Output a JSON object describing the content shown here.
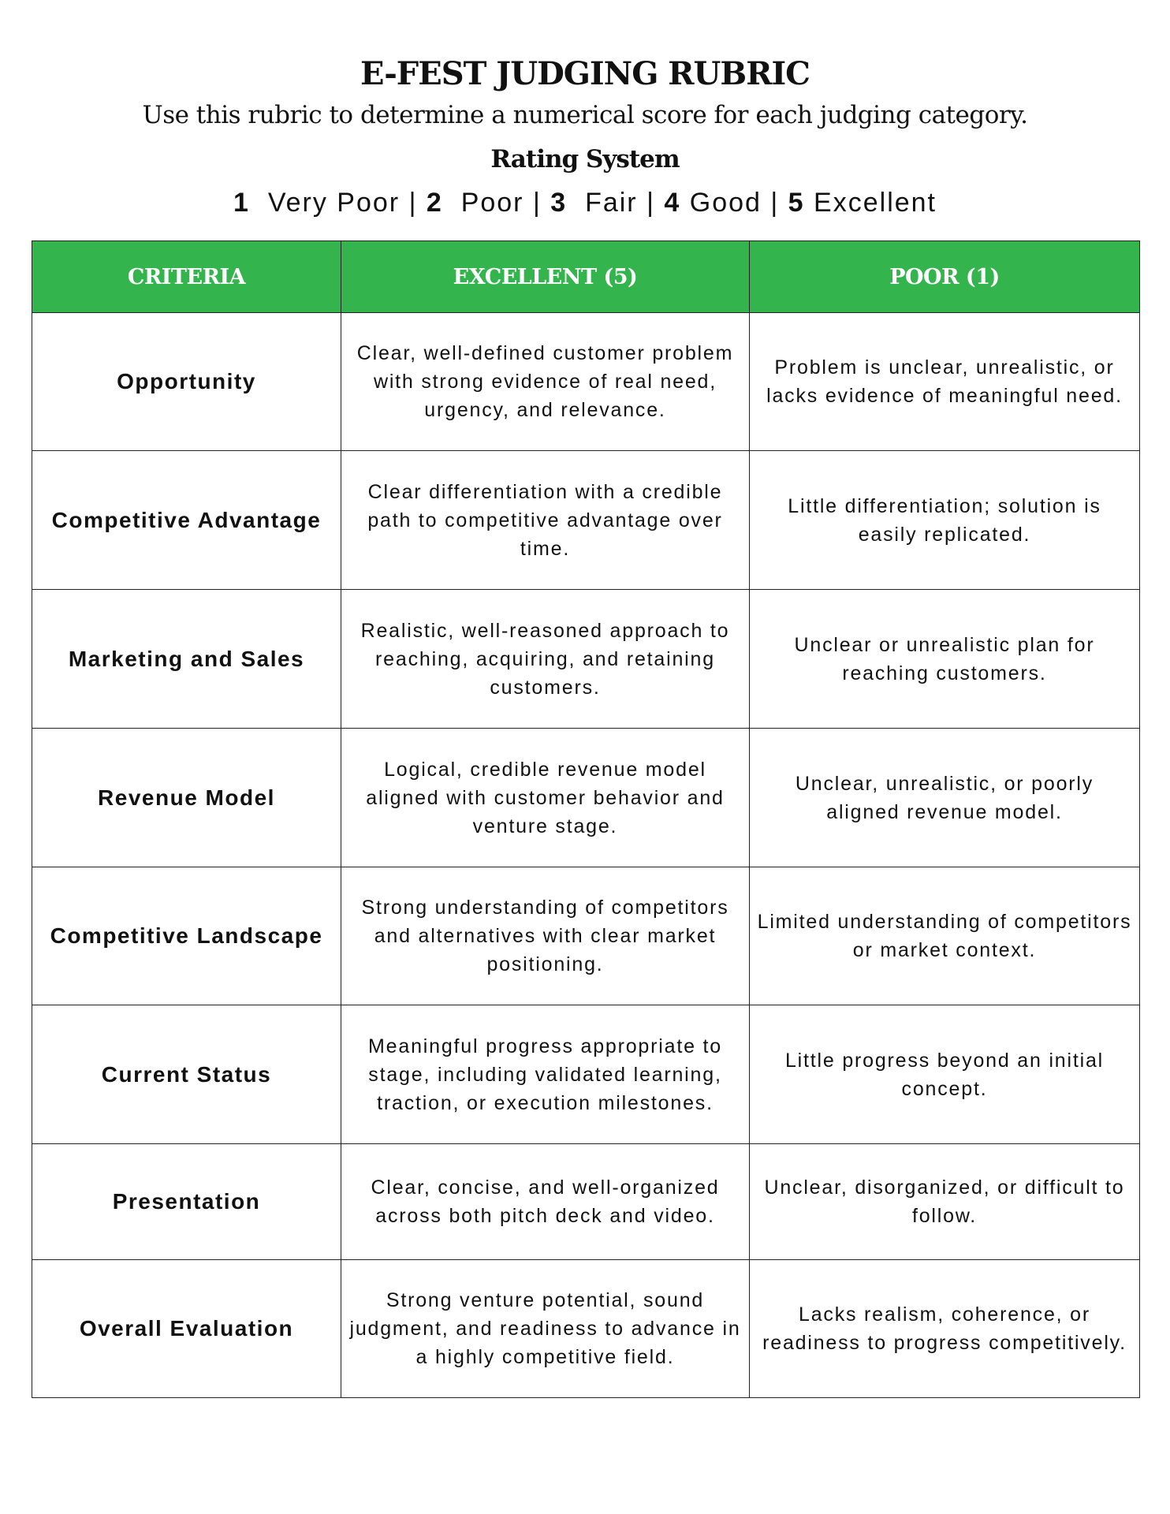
{
  "title": "E-FEST JUDGING RUBRIC",
  "subtitle": "Use this rubric to determine a numerical score for each judging category.",
  "rating_heading": "Rating System",
  "scale": [
    {
      "num": "1",
      "label": "Very Poor"
    },
    {
      "num": "2",
      "label": "Poor"
    },
    {
      "num": "3",
      "label": "Fair"
    },
    {
      "num": "4",
      "label": "Good"
    },
    {
      "num": "5",
      "label": "Excellent"
    }
  ],
  "colors": {
    "header_bg": "#33b44d",
    "header_text": "#ffffff"
  },
  "table": {
    "headers": [
      "CRITERIA",
      "EXCELLENT (5)",
      "POOR (1)"
    ],
    "rows": [
      {
        "criteria": "Opportunity",
        "excellent": "Clear, well-defined customer problem with strong evidence of real need, urgency, and relevance.",
        "poor": "Problem is unclear, unrealistic, or lacks evidence of meaningful need."
      },
      {
        "criteria": "Competitive Advantage",
        "excellent": "Clear differentiation with a credible path to competitive advantage over time.",
        "poor": "Little differentiation; solution is easily replicated."
      },
      {
        "criteria": "Marketing and Sales",
        "excellent": "Realistic, well-reasoned approach to reaching, acquiring, and retaining customers.",
        "poor": "Unclear or unrealistic plan for reaching customers."
      },
      {
        "criteria": "Revenue Model",
        "excellent": "Logical, credible revenue model aligned with customer behavior and venture stage.",
        "poor": "Unclear, unrealistic, or poorly aligned revenue model."
      },
      {
        "criteria": "Competitive Landscape",
        "excellent": "Strong understanding of competitors and alternatives with clear market positioning.",
        "poor": "Limited understanding of competitors or market context."
      },
      {
        "criteria": "Current Status",
        "excellent": "Meaningful progress appropriate to stage, including validated learning, traction, or execution milestones.",
        "poor": "Little progress beyond an initial concept."
      },
      {
        "criteria": "Presentation",
        "excellent": "Clear, concise, and well-organized across both pitch deck and video.",
        "poor": "Unclear, disorganized, or difficult to follow."
      },
      {
        "criteria": "Overall Evaluation",
        "excellent": "Strong venture potential, sound judgment, and readiness to advance in a highly competitive field.",
        "poor": "Lacks realism, coherence, or readiness to progress competitively."
      }
    ]
  }
}
